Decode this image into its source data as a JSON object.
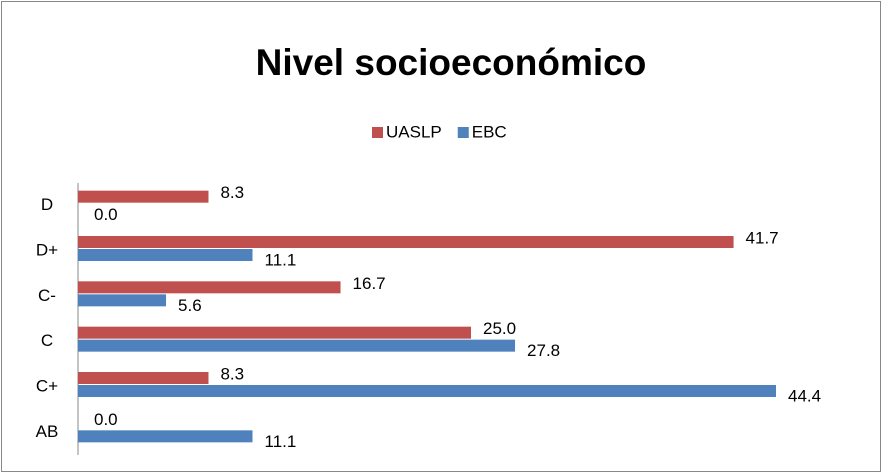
{
  "chart_data": {
    "type": "bar",
    "orientation": "horizontal",
    "title": "Nivel socioeconómico",
    "categories": [
      "AB",
      "C+",
      "C",
      "C-",
      "D+",
      "D"
    ],
    "series": [
      {
        "name": "UASLP",
        "color": "#c0504d",
        "values": [
          0,
          8.3,
          25,
          16.7,
          41.7,
          8.3
        ],
        "value_labels": [
          "0.0",
          "8.3",
          "25.0",
          "16.7",
          "41.7",
          "8.3"
        ]
      },
      {
        "name": "EBC",
        "color": "#4f81bd",
        "values": [
          11.1,
          44.4,
          27.8,
          5.6,
          11.1,
          0
        ],
        "value_labels": [
          "11.1",
          "44.4",
          "27.8",
          "5.6",
          "11.1",
          "0.0"
        ]
      }
    ],
    "legend": "top"
  }
}
